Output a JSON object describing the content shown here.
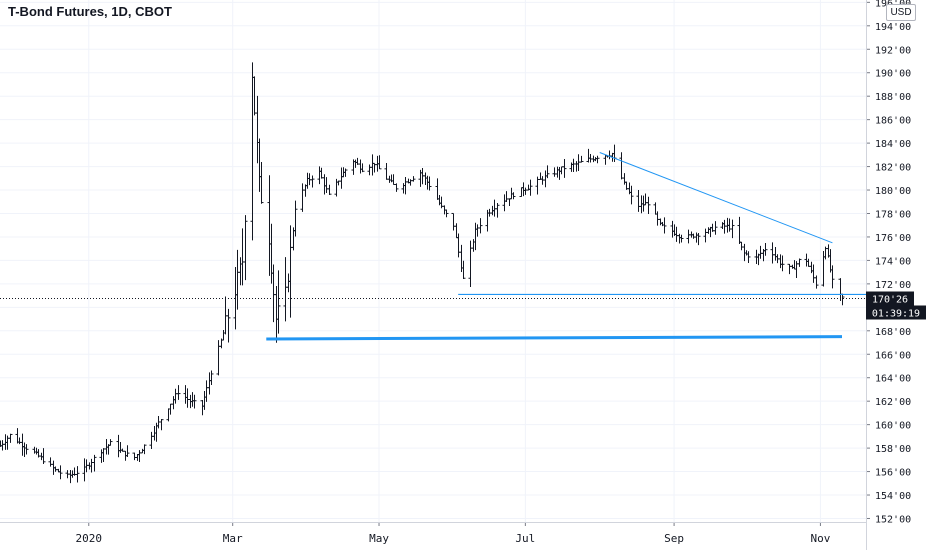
{
  "header": {
    "title": "T-Bond Futures, 1D, CBOT",
    "currency": "USD"
  },
  "price_tag": {
    "last_price": "170'26",
    "countdown": "01:39:19"
  },
  "colors": {
    "bars": "#131722",
    "trendlines": "#2196f3",
    "price_tag_bg": "#131722",
    "grid": "#f0f3fa"
  },
  "chart_data": {
    "type": "ohlc",
    "title": "T-Bond Futures, 1D, CBOT",
    "y_tick_labels": [
      "152'00",
      "154'00",
      "156'00",
      "158'00",
      "160'00",
      "162'00",
      "164'00",
      "166'00",
      "168'00",
      "170'00",
      "172'00",
      "174'00",
      "176'00",
      "178'00",
      "180'00",
      "182'00",
      "184'00",
      "186'00",
      "188'00",
      "190'00",
      "192'00",
      "194'00",
      "196'00"
    ],
    "y_tick_values": [
      152,
      154,
      156,
      158,
      160,
      162,
      164,
      166,
      168,
      170,
      172,
      174,
      176,
      178,
      180,
      182,
      184,
      186,
      188,
      190,
      192,
      194,
      196
    ],
    "ylim": [
      151.7,
      196.2
    ],
    "x_tick_labels": [
      "2020",
      "Mar",
      "May",
      "Jul",
      "Sep",
      "Nov"
    ],
    "x_tick_dates": [
      "2020-01-01",
      "2020-03-01",
      "2020-05-01",
      "2020-07-01",
      "2020-09-01",
      "2020-11-01"
    ],
    "xlim": [
      "2019-11-25",
      "2020-11-20"
    ],
    "grid": true,
    "last_price": 170.81,
    "last_price_label": "170'26",
    "closes": [
      [
        "2019-11-25",
        158.2
      ],
      [
        "2019-11-29",
        159.1
      ],
      [
        "2019-12-04",
        158.3
      ],
      [
        "2019-12-09",
        157.6
      ],
      [
        "2019-12-13",
        157.0
      ],
      [
        "2019-12-18",
        156.1
      ],
      [
        "2019-12-23",
        155.6
      ],
      [
        "2019-12-30",
        156.2
      ],
      [
        "2020-01-06",
        157.8
      ],
      [
        "2020-01-10",
        158.4
      ],
      [
        "2020-01-15",
        157.6
      ],
      [
        "2020-01-20",
        157.2
      ],
      [
        "2020-01-24",
        158.2
      ],
      [
        "2020-01-29",
        159.8
      ],
      [
        "2020-02-03",
        161.5
      ],
      [
        "2020-02-07",
        162.8
      ],
      [
        "2020-02-12",
        162.0
      ],
      [
        "2020-02-17",
        161.6
      ],
      [
        "2020-02-21",
        164.5
      ],
      [
        "2020-02-26",
        167.8
      ],
      [
        "2020-03-02",
        171.5
      ],
      [
        "2020-03-05",
        174.0
      ],
      [
        "2020-03-09",
        190.0
      ],
      [
        "2020-03-12",
        180.5
      ],
      [
        "2020-03-16",
        176.0
      ],
      [
        "2020-03-19",
        169.0
      ],
      [
        "2020-03-23",
        171.0
      ],
      [
        "2020-03-27",
        178.5
      ],
      [
        "2020-04-01",
        180.8
      ],
      [
        "2020-04-06",
        181.5
      ],
      [
        "2020-04-10",
        179.5
      ],
      [
        "2020-04-15",
        181.2
      ],
      [
        "2020-04-20",
        182.5
      ],
      [
        "2020-04-24",
        181.8
      ],
      [
        "2020-04-29",
        182.3
      ],
      [
        "2020-05-04",
        181.0
      ],
      [
        "2020-05-08",
        180.2
      ],
      [
        "2020-05-13",
        180.8
      ],
      [
        "2020-05-18",
        181.5
      ],
      [
        "2020-05-22",
        180.4
      ],
      [
        "2020-05-27",
        178.5
      ],
      [
        "2020-06-01",
        177.0
      ],
      [
        "2020-06-05",
        172.4
      ],
      [
        "2020-06-10",
        176.5
      ],
      [
        "2020-06-15",
        178.0
      ],
      [
        "2020-06-19",
        178.8
      ],
      [
        "2020-06-24",
        179.4
      ],
      [
        "2020-06-29",
        180.0
      ],
      [
        "2020-07-03",
        180.3
      ],
      [
        "2020-07-08",
        181.0
      ],
      [
        "2020-07-13",
        181.5
      ],
      [
        "2020-07-17",
        181.9
      ],
      [
        "2020-07-22",
        182.2
      ],
      [
        "2020-07-27",
        182.6
      ],
      [
        "2020-08-01",
        182.9
      ],
      [
        "2020-08-06",
        183.1
      ],
      [
        "2020-08-11",
        180.5
      ],
      [
        "2020-08-16",
        178.6
      ],
      [
        "2020-08-21",
        178.9
      ],
      [
        "2020-08-26",
        177.0
      ],
      [
        "2020-08-31",
        176.5
      ],
      [
        "2020-09-05",
        175.9
      ],
      [
        "2020-09-10",
        176.2
      ],
      [
        "2020-09-15",
        176.5
      ],
      [
        "2020-09-20",
        177.0
      ],
      [
        "2020-09-25",
        176.8
      ],
      [
        "2020-09-30",
        174.6
      ],
      [
        "2020-10-05",
        174.2
      ],
      [
        "2020-10-10",
        175.2
      ],
      [
        "2020-10-15",
        173.8
      ],
      [
        "2020-10-20",
        173.2
      ],
      [
        "2020-10-25",
        174.5
      ],
      [
        "2020-10-30",
        172.0
      ],
      [
        "2020-11-03",
        175.2
      ],
      [
        "2020-11-07",
        171.2
      ],
      [
        "2020-11-10",
        170.81
      ]
    ],
    "annotations": [
      {
        "type": "trendline",
        "from": [
          "2020-08-01",
          183.2
        ],
        "to": [
          "2020-11-06",
          175.5
        ]
      },
      {
        "type": "horizontal_line",
        "from": [
          "2020-06-03",
          171.1
        ],
        "to": [
          "2020-11-20",
          171.1
        ]
      },
      {
        "type": "horizontal_line",
        "from": [
          "2020-03-15",
          167.3
        ],
        "to": [
          "2020-11-10",
          167.5
        ]
      }
    ]
  }
}
